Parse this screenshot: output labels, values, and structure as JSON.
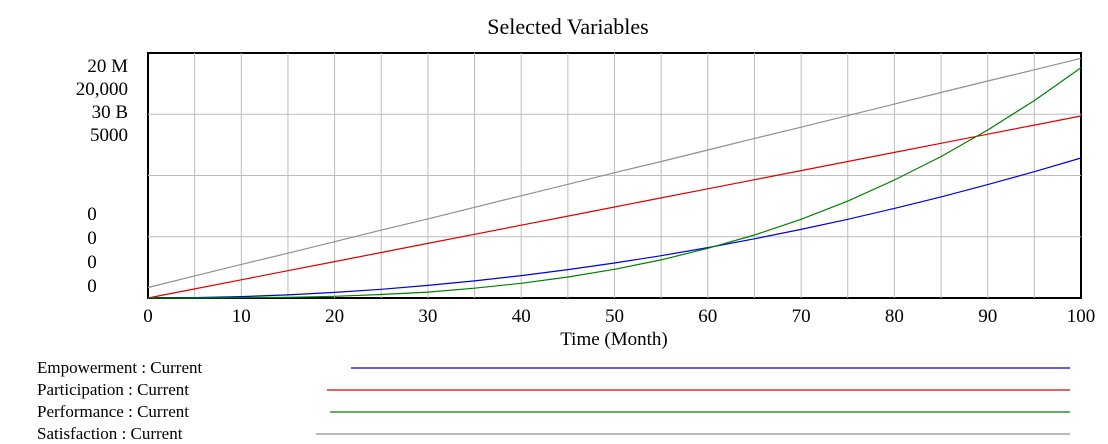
{
  "chart_data": {
    "type": "line",
    "title": "Selected Variables",
    "xlabel": "Time (Month)",
    "xlim": [
      0,
      100
    ],
    "x_ticks": [
      "0",
      "10",
      "20",
      "30",
      "40",
      "50",
      "60",
      "70",
      "80",
      "90",
      "100"
    ],
    "y_tick_labels_top": [
      "20 M",
      "20,000",
      "30 B",
      "5000"
    ],
    "y_tick_labels_bottom": [
      "0",
      "0",
      "0",
      "0"
    ],
    "grid": true,
    "legend_placement": "bottom",
    "x": [
      0,
      5,
      10,
      15,
      20,
      25,
      30,
      35,
      40,
      45,
      50,
      55,
      60,
      65,
      70,
      75,
      80,
      85,
      90,
      95,
      100
    ],
    "series": [
      {
        "name": "Empowerment : Current",
        "color": "#0000e0",
        "values": [
          0.0,
          0.1,
          0.4,
          0.9,
          1.6,
          2.5,
          3.6,
          4.9,
          6.4,
          8.1,
          10.0,
          12.1,
          14.4,
          16.9,
          19.6,
          22.5,
          25.6,
          28.9,
          32.4,
          36.1,
          40.0
        ]
      },
      {
        "name": "Participation : Current",
        "color": "#e00000",
        "values": [
          0.0,
          2.6,
          5.2,
          7.8,
          10.4,
          13.0,
          15.6,
          18.2,
          20.8,
          23.4,
          26.0,
          28.6,
          31.2,
          33.8,
          36.4,
          39.0,
          41.6,
          44.2,
          46.8,
          49.4,
          52.0
        ]
      },
      {
        "name": "Performance : Current",
        "color": "#008000",
        "values": [
          0.0,
          0.0,
          0.1,
          0.2,
          0.5,
          1.0,
          1.7,
          2.8,
          4.2,
          6.0,
          8.2,
          10.9,
          14.2,
          18.0,
          22.5,
          27.7,
          33.7,
          40.4,
          48.0,
          56.4,
          65.8
        ]
      },
      {
        "name": "Satisfaction : Current",
        "color": "#909090",
        "values": [
          3.0,
          6.3,
          9.6,
          12.8,
          16.1,
          19.4,
          22.6,
          25.9,
          29.2,
          32.5,
          35.8,
          39.0,
          42.3,
          45.6,
          48.8,
          52.1,
          55.4,
          58.7,
          62.0,
          65.2,
          68.5
        ]
      }
    ],
    "ylim": [
      0,
      70
    ]
  }
}
